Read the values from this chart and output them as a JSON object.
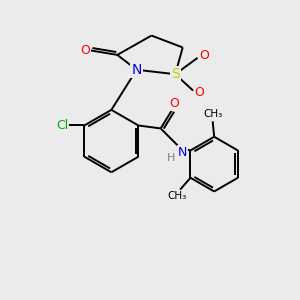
{
  "background_color": "#ebebeb",
  "bond_color": "#000000",
  "figsize": [
    3.0,
    3.0
  ],
  "dpi": 100,
  "colors": {
    "S": "#cccc00",
    "N": "#0000ee",
    "O": "#ff0000",
    "Cl": "#00aa00",
    "C": "#000000",
    "H": "#808080"
  }
}
